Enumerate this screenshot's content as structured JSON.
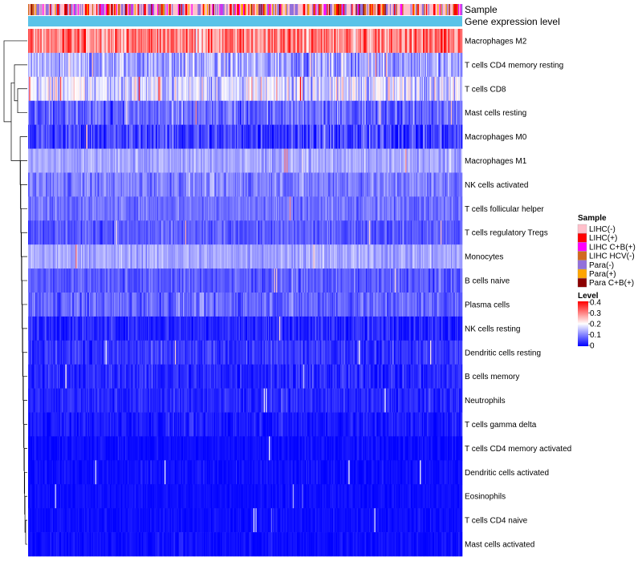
{
  "chart_data": {
    "type": "heatmap",
    "title": "",
    "n_samples": 420,
    "annotations": {
      "sample_label": "Sample",
      "expression_label": "Gene expression level",
      "expression_color": "#5BC3E8"
    },
    "rows": [
      {
        "name": "Macrophages M2",
        "mean": 0.3,
        "spread": 0.1
      },
      {
        "name": "T cells CD4 memory resting",
        "mean": 0.13,
        "spread": 0.08
      },
      {
        "name": "T cells CD8",
        "mean": 0.17,
        "spread": 0.09
      },
      {
        "name": "Mast cells resting",
        "mean": 0.08,
        "spread": 0.06
      },
      {
        "name": "Macrophages M0",
        "mean": 0.05,
        "spread": 0.07
      },
      {
        "name": "Macrophages M1",
        "mean": 0.13,
        "spread": 0.04
      },
      {
        "name": "NK cells activated",
        "mean": 0.1,
        "spread": 0.05
      },
      {
        "name": "T cells follicular helper",
        "mean": 0.09,
        "spread": 0.04
      },
      {
        "name": "T cells regulatory  Tregs",
        "mean": 0.07,
        "spread": 0.04
      },
      {
        "name": "Monocytes",
        "mean": 0.13,
        "spread": 0.04
      },
      {
        "name": "B cells naive",
        "mean": 0.07,
        "spread": 0.04
      },
      {
        "name": "Plasma cells",
        "mean": 0.08,
        "spread": 0.05
      },
      {
        "name": "NK cells resting",
        "mean": 0.03,
        "spread": 0.04
      },
      {
        "name": "Dendritic cells resting",
        "mean": 0.04,
        "spread": 0.04
      },
      {
        "name": "B cells memory",
        "mean": 0.03,
        "spread": 0.04
      },
      {
        "name": "Neutrophils",
        "mean": 0.03,
        "spread": 0.03
      },
      {
        "name": "T cells gamma delta",
        "mean": 0.02,
        "spread": 0.03
      },
      {
        "name": "T cells CD4 memory activated",
        "mean": 0.01,
        "spread": 0.02
      },
      {
        "name": "Dendritic cells activated",
        "mean": 0.01,
        "spread": 0.02
      },
      {
        "name": "Eosinophils",
        "mean": 0.01,
        "spread": 0.015
      },
      {
        "name": "T cells CD4 naive",
        "mean": 0.01,
        "spread": 0.015
      },
      {
        "name": "Mast cells activated",
        "mean": 0.01,
        "spread": 0.02
      }
    ],
    "sample_legend": {
      "title": "Sample",
      "items": [
        {
          "label": "LIHC(-)",
          "color": "#FFC0CB",
          "weight": 0.4
        },
        {
          "label": "LIHC(+)",
          "color": "#FF0000",
          "weight": 0.12
        },
        {
          "label": "LIHC C+B(+)",
          "color": "#FF00FF",
          "weight": 0.1
        },
        {
          "label": "LIHC HCV(-)",
          "color": "#D2691E",
          "weight": 0.06
        },
        {
          "label": "Para(-)",
          "color": "#9370DB",
          "weight": 0.2
        },
        {
          "label": "Para(+)",
          "color": "#FFA500",
          "weight": 0.07
        },
        {
          "label": "Para C+B(+)",
          "color": "#8B0000",
          "weight": 0.05
        }
      ]
    },
    "level_legend": {
      "title": "Level",
      "ticks": [
        "0.4",
        "0.3",
        "0.2",
        "0.1",
        "0"
      ],
      "range": [
        0,
        0.4
      ],
      "colors": [
        "#0000FF",
        "#FFFFFF",
        "#FF0000"
      ]
    }
  }
}
